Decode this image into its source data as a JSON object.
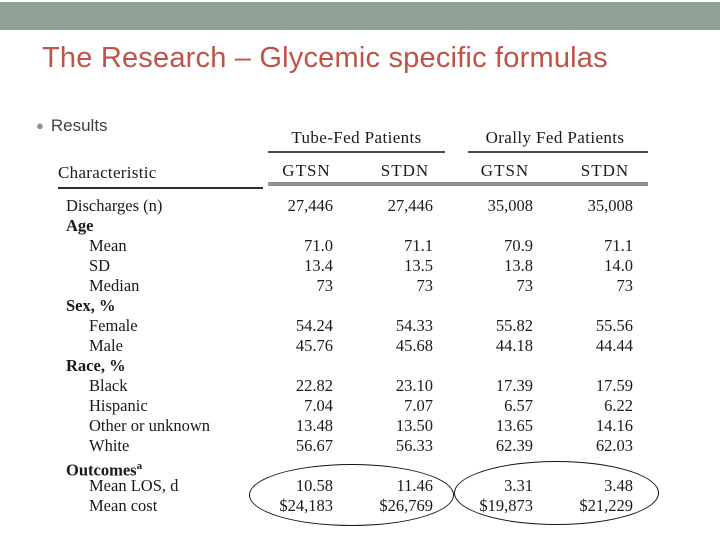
{
  "slide": {
    "title": "The Research – Glycemic specific formulas",
    "bullet": "Results"
  },
  "colors": {
    "top_band": "#90a097",
    "title_text": "#c05247",
    "table_text": "#1a1a1a"
  },
  "table": {
    "characteristic_header": "Characteristic",
    "col_groups": [
      {
        "label": "Tube-Fed Patients",
        "columns": [
          "GTSN",
          "STDN"
        ]
      },
      {
        "label": "Orally Fed Patients",
        "columns": [
          "GTSN",
          "STDN"
        ]
      }
    ],
    "rows": [
      {
        "label": "Discharges (n)",
        "values": [
          "27,446",
          "27,446",
          "35,008",
          "35,008"
        ]
      },
      {
        "label": "Age"
      },
      {
        "label": "Mean",
        "values": [
          "71.0",
          "71.1",
          "70.9",
          "71.1"
        ]
      },
      {
        "label": "SD",
        "values": [
          "13.4",
          "13.5",
          "13.8",
          "14.0"
        ]
      },
      {
        "label": "Median",
        "values": [
          "73",
          "73",
          "73",
          "73"
        ]
      },
      {
        "label": "Sex, %"
      },
      {
        "label": "Female",
        "values": [
          "54.24",
          "54.33",
          "55.82",
          "55.56"
        ]
      },
      {
        "label": "Male",
        "values": [
          "45.76",
          "45.68",
          "44.18",
          "44.44"
        ]
      },
      {
        "label": "Race, %"
      },
      {
        "label": "Black",
        "values": [
          "22.82",
          "23.10",
          "17.39",
          "17.59"
        ]
      },
      {
        "label": "Hispanic",
        "values": [
          "7.04",
          "7.07",
          "6.57",
          "6.22"
        ]
      },
      {
        "label": "Other or unknown",
        "values": [
          "13.48",
          "13.50",
          "13.65",
          "14.16"
        ]
      },
      {
        "label": "White",
        "values": [
          "56.67",
          "56.33",
          "62.39",
          "62.03"
        ]
      },
      {
        "label": "Outcomes",
        "sup": "a"
      },
      {
        "label": "Mean LOS, d",
        "values": [
          "10.58",
          "11.46",
          "3.31",
          "3.48"
        ]
      },
      {
        "label": "Mean cost",
        "values": [
          "$24,183",
          "$26,769",
          "$19,873",
          "$21,229"
        ]
      }
    ]
  },
  "annotations": {
    "tube_fed_outcomes_circle": "ellipse around tube-fed mean LOS and mean cost",
    "orally_fed_outcomes_circle": "ellipse around orally fed mean LOS and mean cost"
  }
}
